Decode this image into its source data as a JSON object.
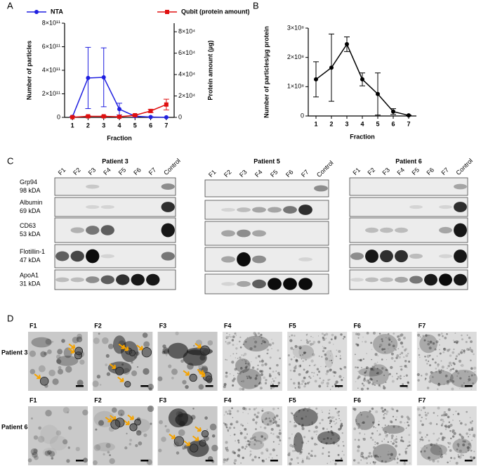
{
  "panel_labels": [
    "A",
    "B",
    "C",
    "D"
  ],
  "chart_data": [
    {
      "type": "line",
      "legend": "top",
      "categories": [
        "1",
        "2",
        "3",
        "4",
        "5",
        "6",
        "7"
      ],
      "xlabel": "Fraction",
      "ylabel": "Number of particles",
      "y2label": "Protein amount (µg)",
      "ylim": [
        0,
        800000000000
      ],
      "yticks": [
        0,
        {
          "value": 200000000000,
          "label": "2×10¹¹"
        },
        {
          "value": 400000000000,
          "label": "4×10¹¹"
        },
        {
          "value": 600000000000,
          "label": "6×10¹¹"
        },
        {
          "value": 800000000000,
          "label": "8×10¹¹"
        }
      ],
      "y2lim": [
        0,
        88000
      ],
      "y2ticks": [
        0,
        {
          "value": 20000,
          "label": "2×10⁴"
        },
        {
          "value": 40000,
          "label": "4×10⁴"
        },
        {
          "value": 60000,
          "label": "6×10⁴"
        },
        {
          "value": 80000,
          "label": "8×10⁴"
        }
      ],
      "series": [
        {
          "name": "NTA",
          "color": "#1f1fe0",
          "marker": "circle",
          "values": [
            5000000000,
            335000000000,
            340000000000,
            70000000000,
            10000000000,
            3000000000,
            1000000000
          ],
          "errors": [
            3000000000,
            260000000000,
            250000000000,
            50000000000,
            8000000000,
            3000000000,
            1000000000
          ]
        },
        {
          "name": "Qubit (protein amount)",
          "color": "#e01010",
          "marker": "square",
          "axis": "y2",
          "values": [
            200,
            1000,
            1000,
            600,
            2000,
            6000,
            12000
          ],
          "errors": [
            200,
            500,
            500,
            400,
            800,
            1500,
            5000
          ]
        }
      ]
    },
    {
      "type": "line",
      "categories": [
        "1",
        "2",
        "3",
        "4",
        "5",
        "6",
        "7"
      ],
      "xlabel": "Fraction",
      "ylabel": "Number of particles/µg protein",
      "ylim": [
        0,
        300000000
      ],
      "yticks": [
        0,
        {
          "value": 100000000,
          "label": "1×10⁸"
        },
        {
          "value": 200000000,
          "label": "2×10⁸"
        },
        {
          "value": 300000000,
          "label": "3×10⁸"
        }
      ],
      "series": [
        {
          "color": "#000000",
          "marker": "circle",
          "values": [
            125000000,
            165000000,
            245000000,
            125000000,
            75000000,
            15000000,
            2000000
          ],
          "errors": [
            60000000,
            115000000,
            25000000,
            22000000,
            72000000,
            10000000,
            1000000
          ]
        }
      ]
    }
  ],
  "blots": {
    "markers": [
      {
        "name": "Grp94",
        "size": "98 kDA"
      },
      {
        "name": "Albumin",
        "size": "69 kDA"
      },
      {
        "name": "CD63",
        "size": "53 kDA"
      },
      {
        "name": "Flotillin-1",
        "size": "47 kDA"
      },
      {
        "name": "ApoA1",
        "size": "31 kDA"
      }
    ],
    "patients": [
      {
        "name": "Patient 3",
        "lanes": [
          "F1",
          "F2",
          "F3",
          "F4",
          "F5",
          "F6",
          "F7",
          "Control"
        ]
      },
      {
        "name": "Patient 5",
        "lanes": [
          "F1",
          "F2",
          "F3",
          "F4",
          "F5",
          "F6",
          "F7",
          "Control"
        ]
      },
      {
        "name": "Patient 6",
        "lanes": [
          "F1",
          "F2",
          "F3",
          "F4",
          "F5",
          "F6",
          "F7",
          "Control"
        ]
      }
    ]
  },
  "tem": {
    "rows": [
      {
        "name": "Patient 3",
        "images": [
          "F1",
          "F2",
          "F3",
          "F4",
          "F5",
          "F6",
          "F7"
        ]
      },
      {
        "name": "Patient 6",
        "images": [
          "F1",
          "F2",
          "F3",
          "F4",
          "F5",
          "F6",
          "F7"
        ]
      }
    ]
  }
}
